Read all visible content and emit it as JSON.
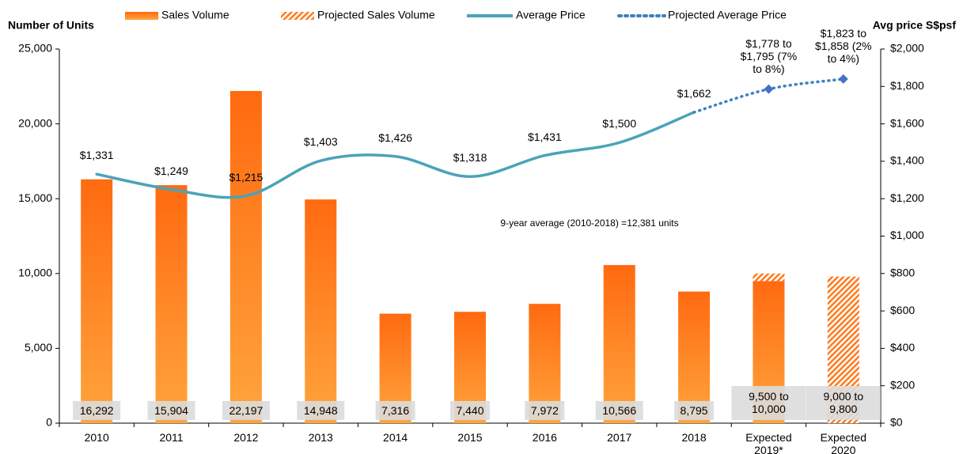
{
  "chart_data": {
    "type": "bar",
    "ylabel": "Number of Units",
    "y2label": "Avg price S$psf",
    "annotation": "9-year average (2010-2018) =12,381 units",
    "categories": [
      "2010",
      "2011",
      "2012",
      "2013",
      "2014",
      "2015",
      "2016",
      "2017",
      "2018",
      "Expected 2019*",
      "Expected 2020"
    ],
    "series": [
      {
        "name": "Sales Volume",
        "type": "bar",
        "color": "#ff7a1c",
        "values": [
          16292,
          15904,
          22197,
          14948,
          7316,
          7440,
          7972,
          10566,
          8795,
          9500,
          null
        ],
        "value_labels": [
          "16,292",
          "15,904",
          "22,197",
          "14,948",
          "7,316",
          "7,440",
          "7,972",
          "10,566",
          "8,795",
          "9,500 to 10,000",
          null
        ]
      },
      {
        "name": "Projected Sales Volume",
        "type": "bar",
        "pattern": "hatched",
        "stacked": true,
        "color": "#ff7a1c",
        "values": [
          null,
          null,
          null,
          null,
          null,
          null,
          null,
          null,
          null,
          500,
          9800
        ],
        "value_labels": [
          null,
          null,
          null,
          null,
          null,
          null,
          null,
          null,
          null,
          null,
          "9,000 to 9,800"
        ]
      },
      {
        "name": "Average Price",
        "type": "line",
        "axis": "y2",
        "color": "#4aa3b9",
        "values": [
          1331,
          1249,
          1215,
          1403,
          1426,
          1318,
          1431,
          1500,
          1662,
          null,
          null
        ],
        "value_labels": [
          "$1,331",
          "$1,249",
          "$1,215",
          "$1,403",
          "$1,426",
          "$1,318",
          "$1,431",
          "$1,500",
          "$1,662",
          null,
          null
        ]
      },
      {
        "name": "Projected Average Price",
        "type": "line",
        "axis": "y2",
        "dotted": true,
        "markers": "diamond",
        "color": "#3f7fbf",
        "values": [
          null,
          null,
          null,
          null,
          null,
          null,
          null,
          null,
          1662,
          1786,
          1840
        ],
        "value_labels": [
          null,
          null,
          null,
          null,
          null,
          null,
          null,
          null,
          null,
          "$1,778 to $1,795 (7% to 8%)",
          "$1,823 to $1,858 (2% to 4%)"
        ]
      }
    ],
    "ylim": [
      0,
      25000
    ],
    "yticks": [
      0,
      {
        "value": 5000,
        "label": "5,000"
      },
      {
        "value": 10000,
        "label": "10,000"
      },
      {
        "value": 15000,
        "label": "15,000"
      },
      {
        "value": 20000,
        "label": "20,000"
      },
      {
        "value": 25000,
        "label": "25,000"
      }
    ],
    "y2lim": [
      0,
      2000
    ],
    "y2ticks": [
      {
        "value": 0,
        "label": "$0"
      },
      {
        "value": 200,
        "label": "$200"
      },
      {
        "value": 400,
        "label": "$400"
      },
      {
        "value": 600,
        "label": "$600"
      },
      {
        "value": 800,
        "label": "$800"
      },
      {
        "value": 1000,
        "label": "$1,000"
      },
      {
        "value": 1200,
        "label": "$1,200"
      },
      {
        "value": 1400,
        "label": "$1,400"
      },
      {
        "value": 1600,
        "label": "$1,600"
      },
      {
        "value": 1800,
        "label": "$1,800"
      },
      {
        "value": 2000,
        "label": "$2,000"
      }
    ],
    "grid": false,
    "legend": "top"
  }
}
